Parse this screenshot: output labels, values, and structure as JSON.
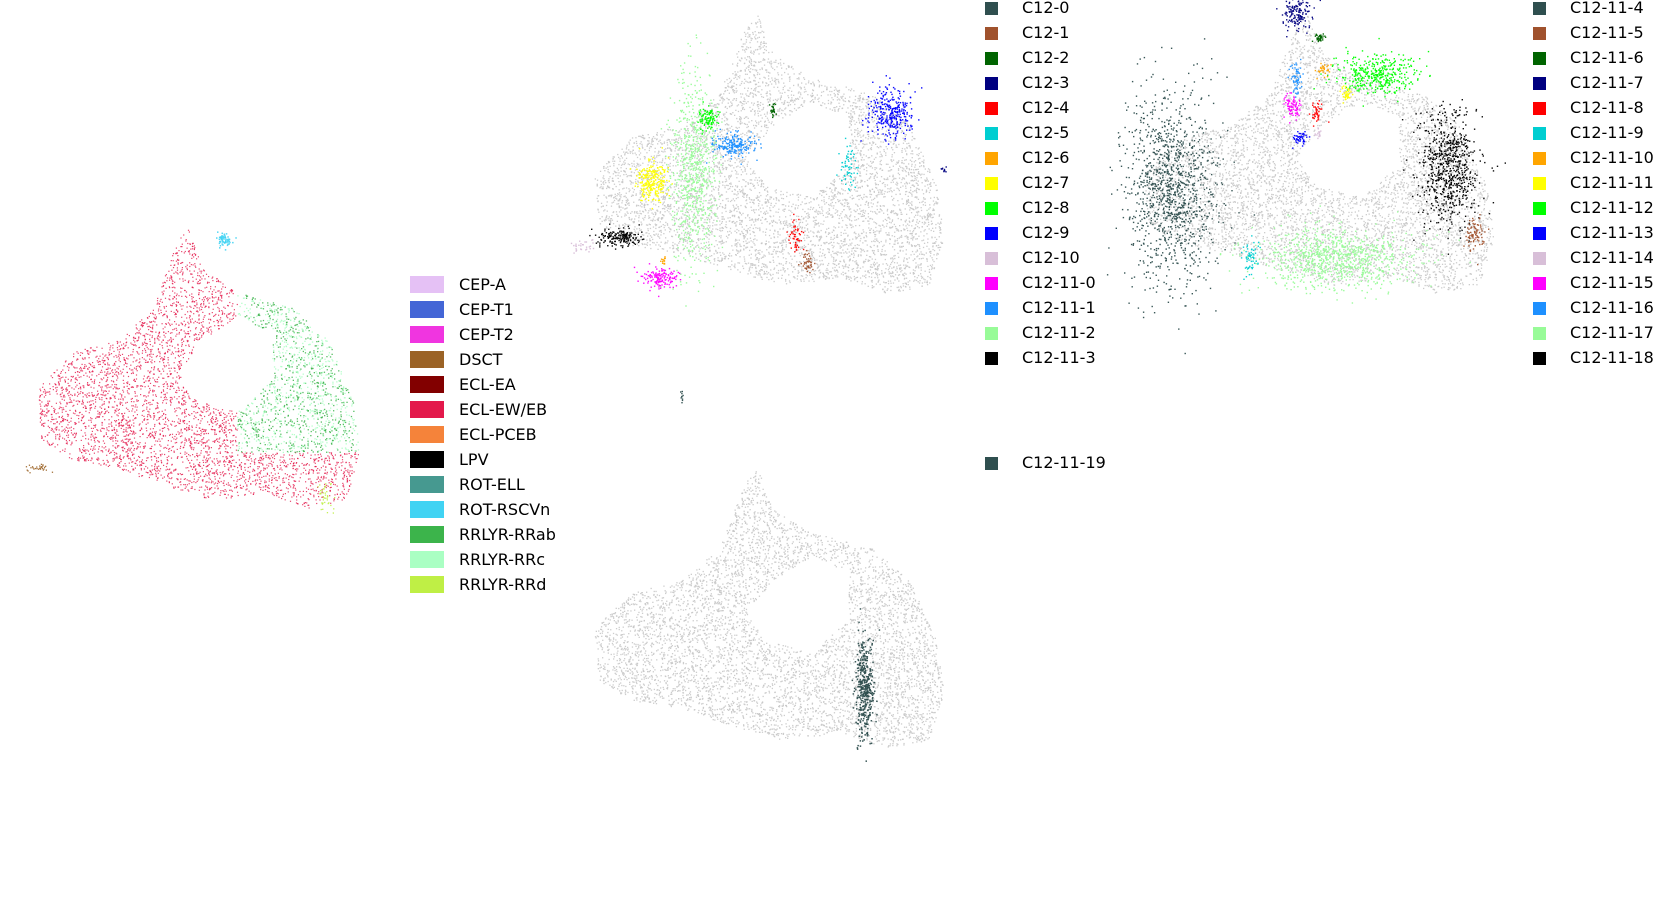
{
  "chart_data": [
    {
      "type": "scatter",
      "title": "",
      "xlabel": "",
      "ylabel": "",
      "background_color": "#c8c8c8",
      "legend": {
        "placement": "right",
        "entries": [
          {
            "label": "CEP-A",
            "color": "#e5c1f5"
          },
          {
            "label": "CEP-T1",
            "color": "#4466d6"
          },
          {
            "label": "CEP-T2",
            "color": "#f035e0"
          },
          {
            "label": "DSCT",
            "color": "#9b6326"
          },
          {
            "label": "ECL-EA",
            "color": "#820000"
          },
          {
            "label": "ECL-EW/EB",
            "color": "#e3194b"
          },
          {
            "label": "ECL-PCEB",
            "color": "#f5833a"
          },
          {
            "label": "LPV",
            "color": "#000000"
          },
          {
            "label": "ROT-ELL",
            "color": "#469990"
          },
          {
            "label": "ROT-RSCVn",
            "color": "#41d3f3"
          },
          {
            "label": "RRLYR-RRab",
            "color": "#3cb44b"
          },
          {
            "label": "RRLYR-RRc",
            "color": "#aaffc3"
          },
          {
            "label": "RRLYR-RRd",
            "color": "#bfef45"
          }
        ]
      }
    },
    {
      "type": "scatter",
      "title": "",
      "xlabel": "",
      "ylabel": "",
      "background_color": "#c8c8c8",
      "legend": {
        "placement": "right",
        "entries": [
          {
            "label": "C12-0",
            "color": "#2f4f4f"
          },
          {
            "label": "C12-1",
            "color": "#a0522d"
          },
          {
            "label": "C12-2",
            "color": "#006400"
          },
          {
            "label": "C12-3",
            "color": "#000080"
          },
          {
            "label": "C12-4",
            "color": "#ff0000"
          },
          {
            "label": "C12-5",
            "color": "#00ced1"
          },
          {
            "label": "C12-6",
            "color": "#ffa500"
          },
          {
            "label": "C12-7",
            "color": "#ffff00"
          },
          {
            "label": "C12-8",
            "color": "#00ff00"
          },
          {
            "label": "C12-9",
            "color": "#0000ff"
          },
          {
            "label": "C12-10",
            "color": "#d8bfd8"
          },
          {
            "label": "C12-11-0",
            "color": "#ff00ff"
          },
          {
            "label": "C12-11-1",
            "color": "#1e90ff"
          },
          {
            "label": "C12-11-2",
            "color": "#98fb98"
          },
          {
            "label": "C12-11-3",
            "color": "#000000"
          }
        ]
      }
    },
    {
      "type": "scatter",
      "title": "",
      "xlabel": "",
      "ylabel": "",
      "background_color": "#c8c8c8",
      "legend": {
        "placement": "right",
        "entries": [
          {
            "label": "C12-11-4",
            "color": "#2f4f4f"
          },
          {
            "label": "C12-11-5",
            "color": "#a0522d"
          },
          {
            "label": "C12-11-6",
            "color": "#006400"
          },
          {
            "label": "C12-11-7",
            "color": "#000080"
          },
          {
            "label": "C12-11-8",
            "color": "#ff0000"
          },
          {
            "label": "C12-11-9",
            "color": "#00ced1"
          },
          {
            "label": "C12-11-10",
            "color": "#ffa500"
          },
          {
            "label": "C12-11-11",
            "color": "#ffff00"
          },
          {
            "label": "C12-11-12",
            "color": "#00ff00"
          },
          {
            "label": "C12-11-13",
            "color": "#0000ff"
          },
          {
            "label": "C12-11-14",
            "color": "#d8bfd8"
          },
          {
            "label": "C12-11-15",
            "color": "#ff00ff"
          },
          {
            "label": "C12-11-16",
            "color": "#1e90ff"
          },
          {
            "label": "C12-11-17",
            "color": "#98fb98"
          },
          {
            "label": "C12-11-18",
            "color": "#000000"
          }
        ]
      }
    },
    {
      "type": "scatter",
      "title": "",
      "xlabel": "",
      "ylabel": "",
      "background_color": "#c8c8c8",
      "legend": {
        "placement": "right",
        "entries": [
          {
            "label": "C12-11-19",
            "color": "#2f4f4f"
          }
        ]
      }
    }
  ]
}
